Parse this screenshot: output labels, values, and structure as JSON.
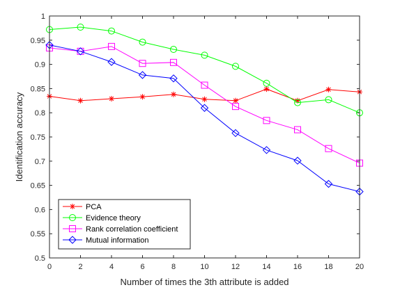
{
  "chart_data": {
    "type": "line",
    "xlabel": "Number of times the 3th attribute is added",
    "ylabel": "Identification accuracy",
    "xlim": [
      0,
      20
    ],
    "ylim": [
      0.5,
      1
    ],
    "xticks": [
      "0",
      "2",
      "4",
      "6",
      "8",
      "10",
      "12",
      "14",
      "16",
      "18",
      "20"
    ],
    "yticks": [
      "0.5",
      "0.55",
      "0.6",
      "0.65",
      "0.7",
      "0.75",
      "0.8",
      "0.85",
      "0.9",
      "0.95",
      "1"
    ],
    "grid": false,
    "legend_position": "bottom-left",
    "x": [
      0,
      2,
      4,
      6,
      8,
      10,
      12,
      14,
      16,
      18,
      20
    ],
    "series": [
      {
        "name": "PCA",
        "color": "#ff0000",
        "marker": "star",
        "values": [
          0.834,
          0.825,
          0.829,
          0.833,
          0.838,
          0.828,
          0.825,
          0.849,
          0.825,
          0.848,
          0.843
        ]
      },
      {
        "name": "Evidence theory",
        "color": "#00ff00",
        "marker": "circle",
        "values": [
          0.972,
          0.977,
          0.969,
          0.946,
          0.931,
          0.919,
          0.896,
          0.861,
          0.821,
          0.827,
          0.8
        ]
      },
      {
        "name": "Rank correlation coefficient",
        "color": "#ff00ff",
        "marker": "square",
        "values": [
          0.934,
          0.927,
          0.937,
          0.902,
          0.904,
          0.857,
          0.813,
          0.784,
          0.765,
          0.726,
          0.696
        ]
      },
      {
        "name": "Mutual information",
        "color": "#0000ff",
        "marker": "diamond",
        "values": [
          0.94,
          0.927,
          0.905,
          0.878,
          0.871,
          0.81,
          0.758,
          0.723,
          0.701,
          0.653,
          0.637
        ]
      }
    ]
  }
}
